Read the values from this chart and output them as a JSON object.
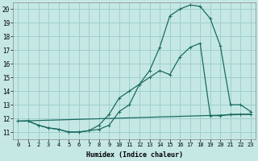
{
  "xlabel": "Humidex (Indice chaleur)",
  "xlim": [
    -0.5,
    23.5
  ],
  "ylim": [
    10.5,
    20.5
  ],
  "xticks": [
    0,
    1,
    2,
    3,
    4,
    5,
    6,
    7,
    8,
    9,
    10,
    11,
    12,
    13,
    14,
    15,
    16,
    17,
    18,
    19,
    20,
    21,
    22,
    23
  ],
  "yticks": [
    11,
    12,
    13,
    14,
    15,
    16,
    17,
    18,
    19,
    20
  ],
  "bg_color": "#c5e8e5",
  "grid_color": "#9fcfcc",
  "line_color": "#1a6b60",
  "line1_x": [
    0,
    1,
    2,
    3,
    4,
    5,
    6,
    7,
    8,
    9,
    10,
    11,
    12,
    13,
    14,
    15,
    16,
    17,
    18,
    19,
    20,
    21,
    22,
    23
  ],
  "line1_y": [
    11.8,
    11.8,
    11.5,
    11.3,
    11.2,
    11.0,
    11.0,
    11.1,
    11.2,
    11.5,
    12.5,
    13.0,
    14.5,
    15.5,
    17.2,
    19.5,
    20.0,
    20.3,
    20.2,
    19.3,
    17.3,
    13.0,
    13.0,
    12.5
  ],
  "line2_x": [
    0,
    1,
    2,
    3,
    4,
    5,
    6,
    7,
    8,
    9,
    10,
    11,
    12,
    13,
    14,
    15,
    16,
    17,
    18,
    19,
    20,
    21,
    22,
    23
  ],
  "line2_y": [
    11.8,
    11.8,
    11.5,
    11.3,
    11.2,
    11.0,
    11.0,
    11.1,
    11.5,
    12.3,
    13.5,
    14.0,
    14.5,
    15.0,
    15.5,
    15.2,
    16.5,
    17.2,
    17.5,
    12.2,
    12.2,
    12.3,
    12.3,
    12.3
  ],
  "line3_x": [
    0,
    23
  ],
  "line3_y": [
    11.8,
    12.3
  ],
  "marker": "+"
}
